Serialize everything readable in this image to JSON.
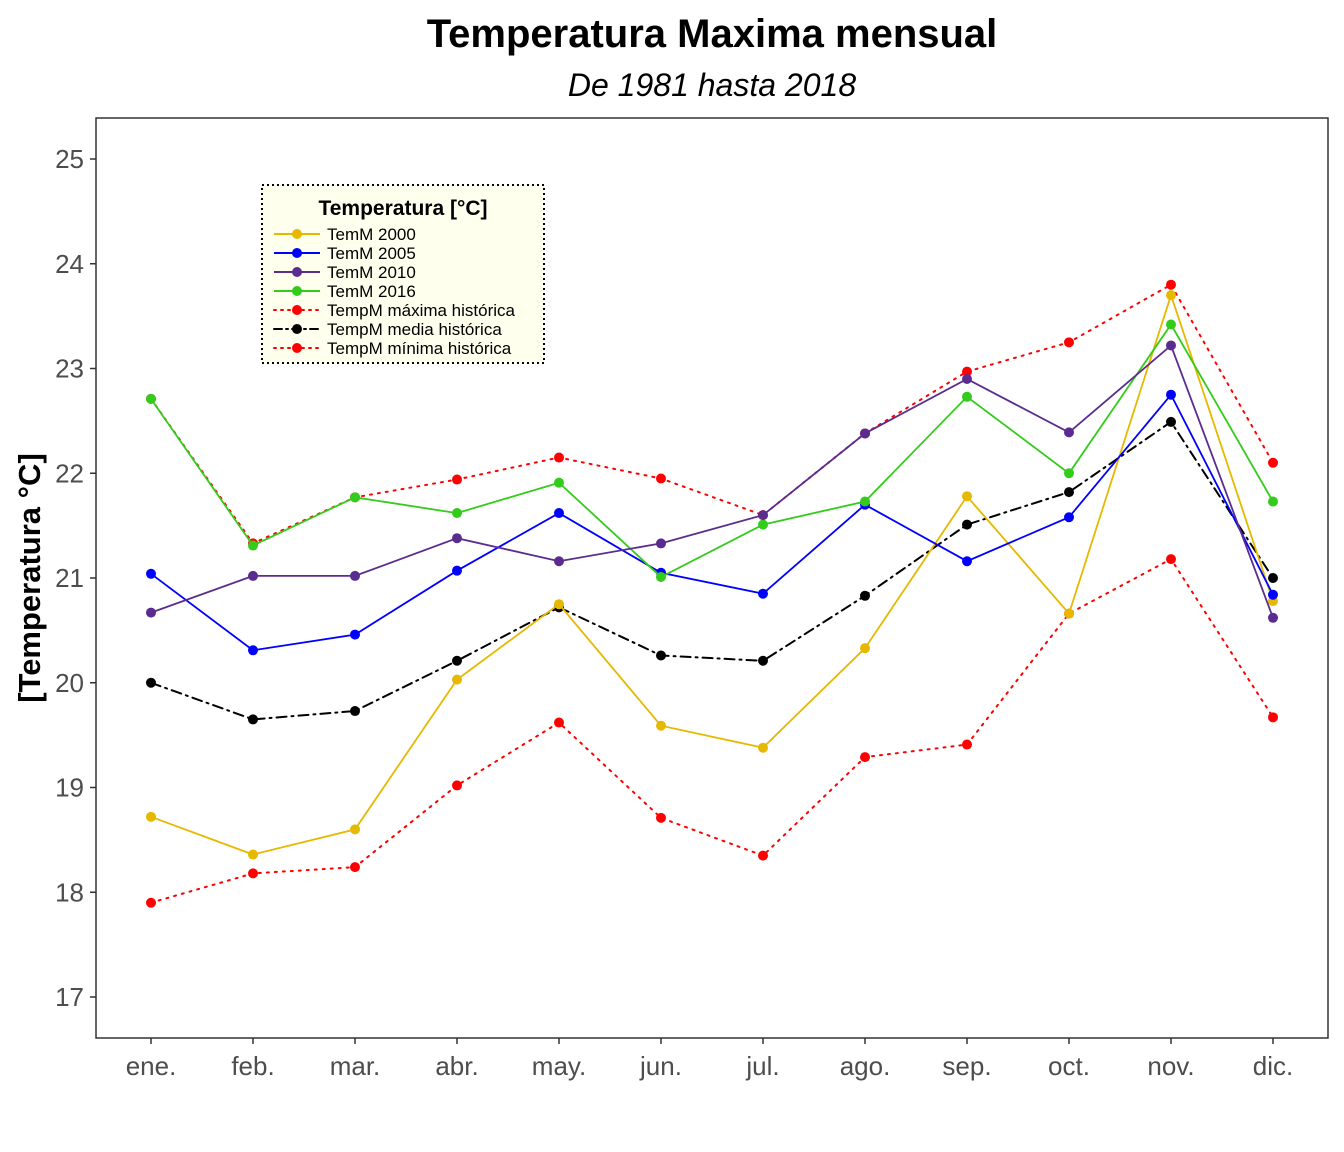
{
  "chart_data": {
    "type": "line",
    "title": "Temperatura Maxima mensual",
    "subtitle": "De 1981 hasta 2018",
    "xlabel": "",
    "ylabel": "[Temperatura °C]",
    "ylim": [
      16.6,
      25.4
    ],
    "yticks": [
      "17",
      "18",
      "19",
      "20",
      "21",
      "22",
      "23",
      "24",
      "25"
    ],
    "grid": false,
    "legend_position": "top-left",
    "legend_title": "Temperatura [°C]",
    "categories": [
      "ene.",
      "feb.",
      "mar.",
      "abr.",
      "may.",
      "jun.",
      "jul.",
      "ago.",
      "sep.",
      "oct.",
      "nov.",
      "dic."
    ],
    "series": [
      {
        "name": "TemM 2000",
        "color": "#E6B800",
        "style": "solid",
        "values": [
          18.72,
          18.36,
          18.6,
          20.03,
          20.75,
          19.59,
          19.38,
          20.33,
          21.78,
          20.66,
          23.7,
          20.78
        ]
      },
      {
        "name": "TemM 2005",
        "color": "#0000FF",
        "style": "solid",
        "values": [
          21.04,
          20.31,
          20.46,
          21.07,
          21.62,
          21.05,
          20.85,
          21.7,
          21.16,
          21.58,
          22.75,
          20.84
        ]
      },
      {
        "name": "TemM 2010",
        "color": "#5B2C8F",
        "style": "solid",
        "values": [
          20.67,
          21.02,
          21.02,
          21.38,
          21.16,
          21.33,
          21.6,
          22.38,
          22.9,
          22.39,
          23.22,
          20.62
        ]
      },
      {
        "name": "TemM 2016",
        "color": "#33CC1A",
        "style": "solid",
        "values": [
          22.71,
          21.31,
          21.77,
          21.62,
          21.91,
          21.01,
          21.51,
          21.73,
          22.73,
          22.0,
          23.42,
          21.73
        ]
      },
      {
        "name": "TempM máxima histórica",
        "color": "#FF0000",
        "style": "dotted",
        "values": [
          22.71,
          21.33,
          21.77,
          21.94,
          22.15,
          21.95,
          21.6,
          22.38,
          22.97,
          23.25,
          23.8,
          22.1
        ]
      },
      {
        "name": "TempM media histórica",
        "color": "#000000",
        "style": "dashdot",
        "values": [
          20.0,
          19.65,
          19.73,
          20.21,
          20.72,
          20.26,
          20.21,
          20.83,
          21.51,
          21.82,
          22.49,
          21.0
        ]
      },
      {
        "name": "TempM mínima histórica",
        "color": "#FF0000",
        "style": "dotted",
        "values": [
          17.9,
          18.18,
          18.24,
          19.02,
          19.62,
          18.71,
          18.35,
          19.29,
          19.41,
          20.66,
          21.18,
          19.67
        ]
      }
    ]
  }
}
